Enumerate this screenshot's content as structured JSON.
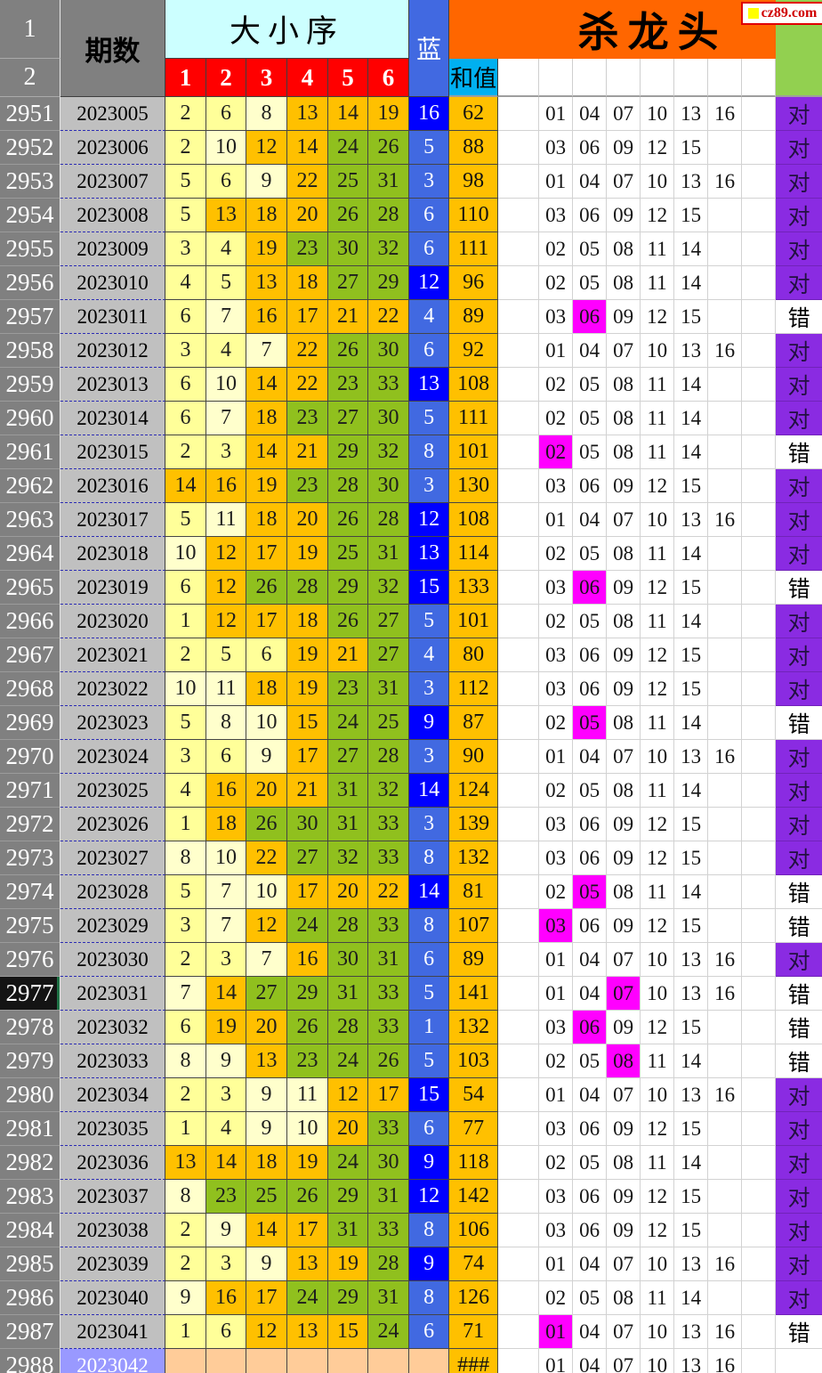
{
  "brand": {
    "site": "cz89.com"
  },
  "header": {
    "corner_row1": "1",
    "corner_row2": "2",
    "period": "期数",
    "size_order": "大小序",
    "ball_headers": [
      "1",
      "2",
      "3",
      "4",
      "5",
      "6"
    ],
    "blue": "蓝",
    "sum": "和值",
    "kill_title": "杀龙头"
  },
  "colors": {
    "small_low": "#FFFF99",
    "small_high": "#FFFFCC",
    "mid": "#FFC000",
    "big": "#90C01E",
    "blue_low": "#4169E1",
    "blue_high": "#0000FF",
    "highlight": "#FF00FF",
    "result_ok": "#8A2BE2",
    "kill_banner": "#FF6600",
    "header_green": "#92D050",
    "future_period": "#9999FF",
    "future_cells": "#FFCC99"
  },
  "rows": [
    {
      "idx": "2951",
      "period": "2023005",
      "balls": [
        2,
        6,
        8,
        13,
        14,
        19
      ],
      "blue": 16,
      "sum": "62",
      "kill": [
        "01",
        "04",
        "07",
        "10",
        "13",
        "16"
      ],
      "hi": -1,
      "result": "对"
    },
    {
      "idx": "2952",
      "period": "2023006",
      "balls": [
        2,
        10,
        12,
        14,
        24,
        26
      ],
      "blue": 5,
      "sum": "88",
      "kill": [
        "03",
        "06",
        "09",
        "12",
        "15"
      ],
      "hi": -1,
      "result": "对"
    },
    {
      "idx": "2953",
      "period": "2023007",
      "balls": [
        5,
        6,
        9,
        22,
        25,
        31
      ],
      "blue": 3,
      "sum": "98",
      "kill": [
        "01",
        "04",
        "07",
        "10",
        "13",
        "16"
      ],
      "hi": -1,
      "result": "对"
    },
    {
      "idx": "2954",
      "period": "2023008",
      "balls": [
        5,
        13,
        18,
        20,
        26,
        28
      ],
      "blue": 6,
      "sum": "110",
      "kill": [
        "03",
        "06",
        "09",
        "12",
        "15"
      ],
      "hi": -1,
      "result": "对"
    },
    {
      "idx": "2955",
      "period": "2023009",
      "balls": [
        3,
        4,
        19,
        23,
        30,
        32
      ],
      "blue": 6,
      "sum": "111",
      "kill": [
        "02",
        "05",
        "08",
        "11",
        "14"
      ],
      "hi": -1,
      "result": "对"
    },
    {
      "idx": "2956",
      "period": "2023010",
      "balls": [
        4,
        5,
        13,
        18,
        27,
        29
      ],
      "blue": 12,
      "sum": "96",
      "kill": [
        "02",
        "05",
        "08",
        "11",
        "14"
      ],
      "hi": -1,
      "result": "对"
    },
    {
      "idx": "2957",
      "period": "2023011",
      "balls": [
        6,
        7,
        16,
        17,
        21,
        22
      ],
      "blue": 4,
      "sum": "89",
      "kill": [
        "03",
        "06",
        "09",
        "12",
        "15"
      ],
      "hi": 1,
      "result": "错"
    },
    {
      "idx": "2958",
      "period": "2023012",
      "balls": [
        3,
        4,
        7,
        22,
        26,
        30
      ],
      "blue": 6,
      "sum": "92",
      "kill": [
        "01",
        "04",
        "07",
        "10",
        "13",
        "16"
      ],
      "hi": -1,
      "result": "对"
    },
    {
      "idx": "2959",
      "period": "2023013",
      "balls": [
        6,
        10,
        14,
        22,
        23,
        33
      ],
      "blue": 13,
      "sum": "108",
      "kill": [
        "02",
        "05",
        "08",
        "11",
        "14"
      ],
      "hi": -1,
      "result": "对"
    },
    {
      "idx": "2960",
      "period": "2023014",
      "balls": [
        6,
        7,
        18,
        23,
        27,
        30
      ],
      "blue": 5,
      "sum": "111",
      "kill": [
        "02",
        "05",
        "08",
        "11",
        "14"
      ],
      "hi": -1,
      "result": "对"
    },
    {
      "idx": "2961",
      "period": "2023015",
      "balls": [
        2,
        3,
        14,
        21,
        29,
        32
      ],
      "blue": 8,
      "sum": "101",
      "kill": [
        "02",
        "05",
        "08",
        "11",
        "14"
      ],
      "hi": 0,
      "result": "错"
    },
    {
      "idx": "2962",
      "period": "2023016",
      "balls": [
        14,
        16,
        19,
        23,
        28,
        30
      ],
      "blue": 3,
      "sum": "130",
      "kill": [
        "03",
        "06",
        "09",
        "12",
        "15"
      ],
      "hi": -1,
      "result": "对"
    },
    {
      "idx": "2963",
      "period": "2023017",
      "balls": [
        5,
        11,
        18,
        20,
        26,
        28
      ],
      "blue": 12,
      "sum": "108",
      "kill": [
        "01",
        "04",
        "07",
        "10",
        "13",
        "16"
      ],
      "hi": -1,
      "result": "对"
    },
    {
      "idx": "2964",
      "period": "2023018",
      "balls": [
        10,
        12,
        17,
        19,
        25,
        31
      ],
      "blue": 13,
      "sum": "114",
      "kill": [
        "02",
        "05",
        "08",
        "11",
        "14"
      ],
      "hi": -1,
      "result": "对"
    },
    {
      "idx": "2965",
      "period": "2023019",
      "balls": [
        6,
        12,
        26,
        28,
        29,
        32
      ],
      "blue": 15,
      "sum": "133",
      "kill": [
        "03",
        "06",
        "09",
        "12",
        "15"
      ],
      "hi": 1,
      "result": "错"
    },
    {
      "idx": "2966",
      "period": "2023020",
      "balls": [
        1,
        12,
        17,
        18,
        26,
        27
      ],
      "blue": 5,
      "sum": "101",
      "kill": [
        "02",
        "05",
        "08",
        "11",
        "14"
      ],
      "hi": -1,
      "result": "对"
    },
    {
      "idx": "2967",
      "period": "2023021",
      "balls": [
        2,
        5,
        6,
        19,
        21,
        27
      ],
      "blue": 4,
      "sum": "80",
      "kill": [
        "03",
        "06",
        "09",
        "12",
        "15"
      ],
      "hi": -1,
      "result": "对"
    },
    {
      "idx": "2968",
      "period": "2023022",
      "balls": [
        10,
        11,
        18,
        19,
        23,
        31
      ],
      "blue": 3,
      "sum": "112",
      "kill": [
        "03",
        "06",
        "09",
        "12",
        "15"
      ],
      "hi": -1,
      "result": "对"
    },
    {
      "idx": "2969",
      "period": "2023023",
      "balls": [
        5,
        8,
        10,
        15,
        24,
        25
      ],
      "blue": 9,
      "sum": "87",
      "kill": [
        "02",
        "05",
        "08",
        "11",
        "14"
      ],
      "hi": 1,
      "result": "错"
    },
    {
      "idx": "2970",
      "period": "2023024",
      "balls": [
        3,
        6,
        9,
        17,
        27,
        28
      ],
      "blue": 3,
      "sum": "90",
      "kill": [
        "01",
        "04",
        "07",
        "10",
        "13",
        "16"
      ],
      "hi": -1,
      "result": "对"
    },
    {
      "idx": "2971",
      "period": "2023025",
      "balls": [
        4,
        16,
        20,
        21,
        31,
        32
      ],
      "blue": 14,
      "sum": "124",
      "kill": [
        "02",
        "05",
        "08",
        "11",
        "14"
      ],
      "hi": -1,
      "result": "对"
    },
    {
      "idx": "2972",
      "period": "2023026",
      "balls": [
        1,
        18,
        26,
        30,
        31,
        33
      ],
      "blue": 3,
      "sum": "139",
      "kill": [
        "03",
        "06",
        "09",
        "12",
        "15"
      ],
      "hi": -1,
      "result": "对"
    },
    {
      "idx": "2973",
      "period": "2023027",
      "balls": [
        8,
        10,
        22,
        27,
        32,
        33
      ],
      "blue": 8,
      "sum": "132",
      "kill": [
        "03",
        "06",
        "09",
        "12",
        "15"
      ],
      "hi": -1,
      "result": "对"
    },
    {
      "idx": "2974",
      "period": "2023028",
      "balls": [
        5,
        7,
        10,
        17,
        20,
        22
      ],
      "blue": 14,
      "sum": "81",
      "kill": [
        "02",
        "05",
        "08",
        "11",
        "14"
      ],
      "hi": 1,
      "result": "错"
    },
    {
      "idx": "2975",
      "period": "2023029",
      "balls": [
        3,
        7,
        12,
        24,
        28,
        33
      ],
      "blue": 8,
      "sum": "107",
      "kill": [
        "03",
        "06",
        "09",
        "12",
        "15"
      ],
      "hi": 0,
      "result": "错"
    },
    {
      "idx": "2976",
      "period": "2023030",
      "balls": [
        2,
        3,
        7,
        16,
        30,
        31
      ],
      "blue": 6,
      "sum": "89",
      "kill": [
        "01",
        "04",
        "07",
        "10",
        "13",
        "16"
      ],
      "hi": -1,
      "result": "对"
    },
    {
      "idx": "2977",
      "period": "2023031",
      "balls": [
        7,
        14,
        27,
        29,
        31,
        33
      ],
      "blue": 5,
      "sum": "141",
      "kill": [
        "01",
        "04",
        "07",
        "10",
        "13",
        "16"
      ],
      "hi": 2,
      "result": "错",
      "selected": true
    },
    {
      "idx": "2978",
      "period": "2023032",
      "balls": [
        6,
        19,
        20,
        26,
        28,
        33
      ],
      "blue": 1,
      "sum": "132",
      "kill": [
        "03",
        "06",
        "09",
        "12",
        "15"
      ],
      "hi": 1,
      "result": "错"
    },
    {
      "idx": "2979",
      "period": "2023033",
      "balls": [
        8,
        9,
        13,
        23,
        24,
        26
      ],
      "blue": 5,
      "sum": "103",
      "kill": [
        "02",
        "05",
        "08",
        "11",
        "14"
      ],
      "hi": 2,
      "result": "错"
    },
    {
      "idx": "2980",
      "period": "2023034",
      "balls": [
        2,
        3,
        9,
        11,
        12,
        17
      ],
      "blue": 15,
      "sum": "54",
      "kill": [
        "01",
        "04",
        "07",
        "10",
        "13",
        "16"
      ],
      "hi": -1,
      "result": "对"
    },
    {
      "idx": "2981",
      "period": "2023035",
      "balls": [
        1,
        4,
        9,
        10,
        20,
        33
      ],
      "blue": 6,
      "sum": "77",
      "kill": [
        "03",
        "06",
        "09",
        "12",
        "15"
      ],
      "hi": -1,
      "result": "对"
    },
    {
      "idx": "2982",
      "period": "2023036",
      "balls": [
        13,
        14,
        18,
        19,
        24,
        30
      ],
      "blue": 9,
      "sum": "118",
      "kill": [
        "02",
        "05",
        "08",
        "11",
        "14"
      ],
      "hi": -1,
      "result": "对"
    },
    {
      "idx": "2983",
      "period": "2023037",
      "balls": [
        8,
        23,
        25,
        26,
        29,
        31
      ],
      "blue": 12,
      "sum": "142",
      "kill": [
        "03",
        "06",
        "09",
        "12",
        "15"
      ],
      "hi": -1,
      "result": "对"
    },
    {
      "idx": "2984",
      "period": "2023038",
      "balls": [
        2,
        9,
        14,
        17,
        31,
        33
      ],
      "blue": 8,
      "sum": "106",
      "kill": [
        "03",
        "06",
        "09",
        "12",
        "15"
      ],
      "hi": -1,
      "result": "对"
    },
    {
      "idx": "2985",
      "period": "2023039",
      "balls": [
        2,
        3,
        9,
        13,
        19,
        28
      ],
      "blue": 9,
      "sum": "74",
      "kill": [
        "01",
        "04",
        "07",
        "10",
        "13",
        "16"
      ],
      "hi": -1,
      "result": "对"
    },
    {
      "idx": "2986",
      "period": "2023040",
      "balls": [
        9,
        16,
        17,
        24,
        29,
        31
      ],
      "blue": 8,
      "sum": "126",
      "kill": [
        "02",
        "05",
        "08",
        "11",
        "14"
      ],
      "hi": -1,
      "result": "对"
    },
    {
      "idx": "2987",
      "period": "2023041",
      "balls": [
        1,
        6,
        12,
        13,
        15,
        24
      ],
      "blue": 6,
      "sum": "71",
      "kill": [
        "01",
        "04",
        "07",
        "10",
        "13",
        "16"
      ],
      "hi": 0,
      "result": "错"
    },
    {
      "idx": "2988",
      "period": "2023042",
      "balls": [],
      "blue": "",
      "sum": "###",
      "kill": [
        "01",
        "04",
        "07",
        "10",
        "13",
        "16"
      ],
      "hi": -1,
      "result": "",
      "future": true
    }
  ]
}
